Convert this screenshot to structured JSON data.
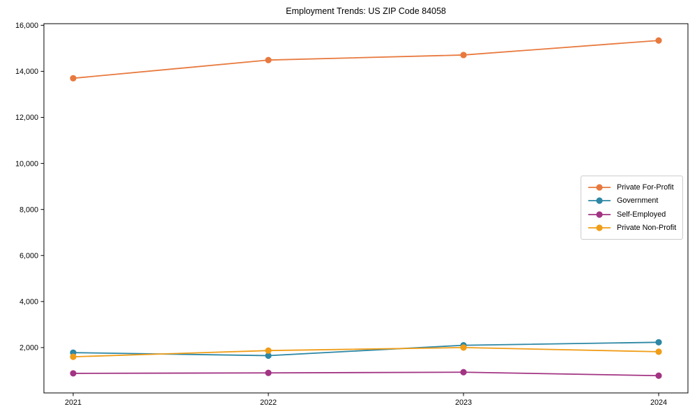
{
  "chart_data": {
    "type": "line",
    "title": "Employment Trends: US ZIP Code 84058",
    "x": [
      2021,
      2022,
      2023,
      2024
    ],
    "x_tick_labels": [
      "2021",
      "2022",
      "2023",
      "2024"
    ],
    "xlim": [
      2020.85,
      2024.15
    ],
    "y_ticks": [
      2000,
      4000,
      6000,
      8000,
      10000,
      12000,
      14000,
      16000
    ],
    "y_tick_labels": [
      "2,000",
      "4,000",
      "6,000",
      "8,000",
      "10,000",
      "12,000",
      "14,000",
      "16,000"
    ],
    "ylim": [
      30,
      16070
    ],
    "grid": false,
    "legend_position": "center right",
    "series": [
      {
        "name": "Private For-Profit",
        "color": "#e8793e",
        "values": [
          13700,
          14490,
          14710,
          15340
        ]
      },
      {
        "name": "Government",
        "color": "#2d87a5",
        "values": [
          1780,
          1650,
          2100,
          2230
        ]
      },
      {
        "name": "Self-Employed",
        "color": "#a23483",
        "values": [
          880,
          900,
          930,
          780
        ]
      },
      {
        "name": "Private Non-Profit",
        "color": "#f09d17",
        "values": [
          1600,
          1870,
          2000,
          1820
        ]
      }
    ]
  }
}
